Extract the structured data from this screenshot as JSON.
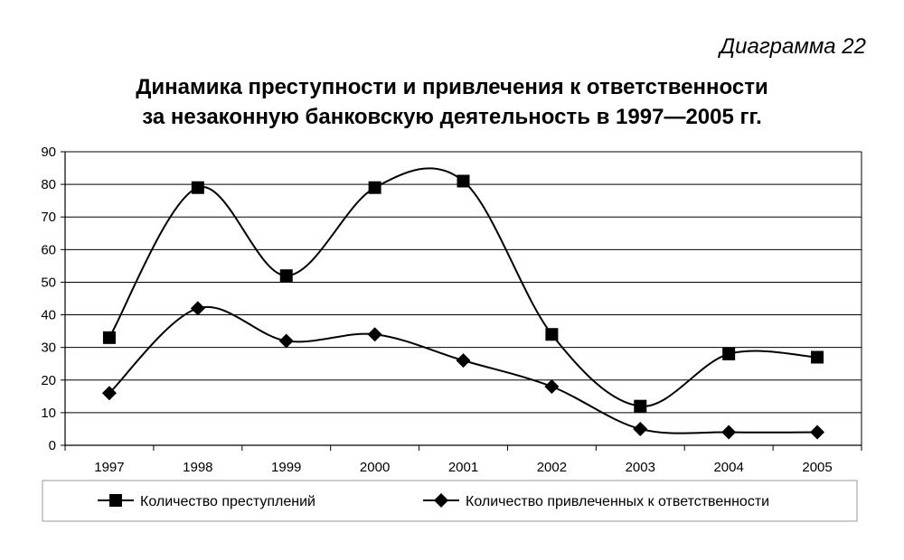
{
  "chart_data": {
    "type": "line",
    "label": "Диаграмма 22",
    "title_lines": [
      "Динамика преступности и привлечения к ответственности",
      "за незаконную банковскую деятельность в 1997—2005 гг."
    ],
    "categories": [
      "1997",
      "1998",
      "1999",
      "2000",
      "2001",
      "2002",
      "2003",
      "2004",
      "2005"
    ],
    "y_ticks": [
      "0",
      "10",
      "20",
      "30",
      "40",
      "50",
      "60",
      "70",
      "80",
      "90"
    ],
    "ylim": [
      0,
      90
    ],
    "smooth": true,
    "grid": "horizontal",
    "legend_position": "bottom",
    "series": [
      {
        "name": "Количество преступлений",
        "marker": "square",
        "values": [
          33,
          79,
          52,
          79,
          81,
          34,
          12,
          28,
          27
        ]
      },
      {
        "name": "Количество привлеченных к ответственности",
        "marker": "diamond",
        "values": [
          16,
          42,
          32,
          34,
          26,
          18,
          5,
          4,
          4
        ]
      }
    ]
  }
}
